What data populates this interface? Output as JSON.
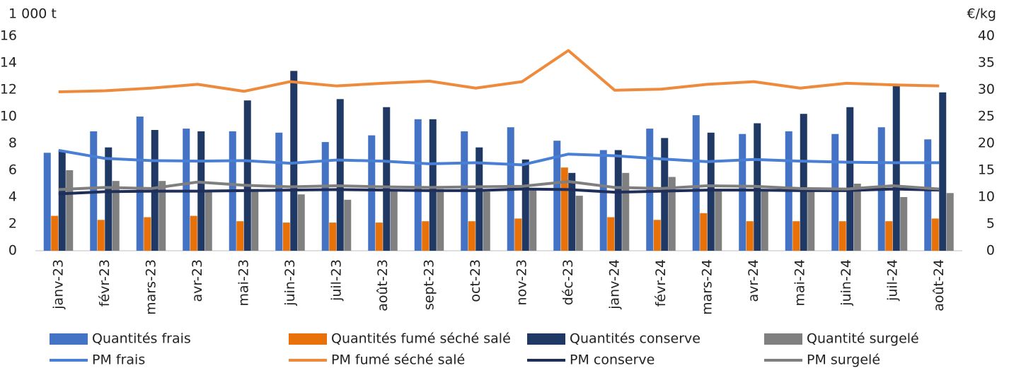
{
  "chart_data": {
    "type": "bar",
    "y_label": "1 000 t",
    "y2_label": "€/kg",
    "categories": [
      "janv-23",
      "févr-23",
      "mars-23",
      "avr-23",
      "mai-23",
      "juin-23",
      "juil-23",
      "août-23",
      "sept-23",
      "oct-23",
      "nov-23",
      "déc-23",
      "janv-24",
      "févr-24",
      "mars-24",
      "avr-24",
      "mai-24",
      "juin-24",
      "juil-24",
      "août-24"
    ],
    "ylim": [
      0,
      16
    ],
    "yticks": [
      0,
      2,
      4,
      6,
      8,
      10,
      12,
      14,
      16
    ],
    "y2lim": [
      0,
      40
    ],
    "y2ticks": [
      0,
      5,
      10,
      15,
      20,
      25,
      30,
      35,
      40
    ],
    "grid": false,
    "series": [
      {
        "name": "Quantités frais",
        "type": "bar",
        "color": "#4472c4",
        "values": [
          7.3,
          8.9,
          10.0,
          9.1,
          8.9,
          8.8,
          8.1,
          8.6,
          9.8,
          8.9,
          9.2,
          8.2,
          7.5,
          9.1,
          10.1,
          8.7,
          8.9,
          8.7,
          9.2,
          8.3
        ]
      },
      {
        "name": "Quantités fumé séché salé",
        "type": "bar",
        "color": "#e8710a",
        "values": [
          2.6,
          2.3,
          2.5,
          2.6,
          2.2,
          2.1,
          2.1,
          2.1,
          2.2,
          2.2,
          2.4,
          6.2,
          2.5,
          2.3,
          2.8,
          2.2,
          2.2,
          2.2,
          2.2,
          2.4
        ]
      },
      {
        "name": "Quantités conserve",
        "type": "bar",
        "color": "#1f3864",
        "values": [
          7.5,
          7.7,
          9.0,
          8.9,
          11.2,
          13.4,
          11.3,
          10.7,
          9.8,
          7.7,
          6.8,
          5.8,
          7.5,
          8.4,
          8.8,
          9.5,
          10.2,
          10.7,
          12.4,
          11.8
        ]
      },
      {
        "name": "Quantité surgelé",
        "type": "bar",
        "color": "#808080",
        "values": [
          6.0,
          5.2,
          5.2,
          4.4,
          4.6,
          4.2,
          3.8,
          4.5,
          4.6,
          4.4,
          4.6,
          4.1,
          5.8,
          5.5,
          4.6,
          4.6,
          4.5,
          5.0,
          4.0,
          4.3
        ]
      },
      {
        "name": "PM frais",
        "type": "line",
        "axis": "y2",
        "color": "#4a7fd6",
        "values": [
          18.7,
          17.2,
          16.8,
          16.7,
          16.8,
          16.3,
          16.9,
          16.7,
          16.2,
          16.4,
          16.0,
          18.0,
          17.7,
          17.1,
          16.6,
          17.0,
          16.7,
          16.5,
          16.4,
          16.4
        ]
      },
      {
        "name": "PM fumé séché salé",
        "type": "line",
        "axis": "y2",
        "color": "#ee8a3c",
        "values": [
          29.6,
          29.8,
          30.3,
          31.0,
          29.7,
          31.5,
          30.7,
          31.2,
          31.6,
          30.3,
          31.5,
          37.3,
          29.9,
          30.1,
          31.0,
          31.5,
          30.3,
          31.2,
          30.9,
          30.7
        ]
      },
      {
        "name": "PM conserve",
        "type": "line",
        "axis": "y2",
        "color": "#1f2f5a",
        "values": [
          10.6,
          11.0,
          11.1,
          11.1,
          11.2,
          11.3,
          11.4,
          11.3,
          11.2,
          11.2,
          11.5,
          11.4,
          10.9,
          11.1,
          11.3,
          11.3,
          11.2,
          11.2,
          11.5,
          11.3
        ]
      },
      {
        "name": "PM surgelé",
        "type": "line",
        "axis": "y2",
        "color": "#7f7f7f",
        "values": [
          11.4,
          11.8,
          11.6,
          12.8,
          12.2,
          11.9,
          12.1,
          11.9,
          11.8,
          11.9,
          12.0,
          12.9,
          11.8,
          11.6,
          12.1,
          12.0,
          11.6,
          11.5,
          12.1,
          11.5
        ]
      }
    ]
  }
}
